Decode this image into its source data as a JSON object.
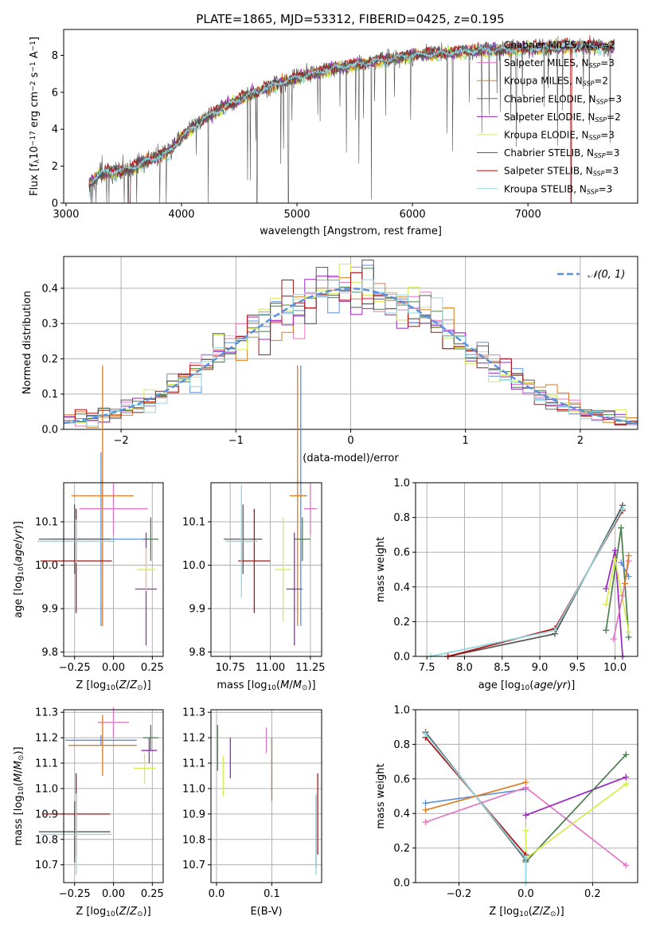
{
  "figure_title": "PLATE=1865, MJD=53312, FIBERID=0425, z=0.195",
  "colors": {
    "Chabrier MILES": "#5b8fde",
    "Salpeter MILES": "#e377c2",
    "Kroupa MILES": "#e07b20",
    "Chabrier ELODIE": "#4c7d4c",
    "Salpeter ELODIE": "#9a26c2",
    "Kroupa ELODIE": "#d4ec4f",
    "Chabrier STELIB": "#555555",
    "Salpeter STELIB": "#b01010",
    "Kroupa STELIB": "#8fd6df",
    "Normal": "#5b8fde"
  },
  "chart_data": [
    {
      "id": "spectrum",
      "type": "line",
      "xlabel": "wavelength [Angstrom, rest frame]",
      "ylabel": "Flux [f",
      "ylabel_parts": {
        "a": "Flux [f",
        "b": "λ",
        "c": "10",
        "d": "−17",
        "e": " erg cm",
        "f": "−2",
        "g": " s",
        "h": "−1",
        "i": " A",
        "j": "−1",
        "k": "]"
      },
      "xlim": [
        2980,
        7950
      ],
      "ylim": [
        0,
        9.4
      ],
      "xticks": [
        3000,
        4000,
        5000,
        6000,
        7000
      ],
      "yticks": [
        0,
        2,
        4,
        6,
        8
      ],
      "legend_position": "right",
      "series": [
        {
          "name": "Chabrier MILES",
          "sub": "SSP",
          "n": "2"
        },
        {
          "name": "Salpeter MILES",
          "sub": "SSP",
          "n": "3"
        },
        {
          "name": "Kroupa MILES",
          "sub": "SSP",
          "n": "2"
        },
        {
          "name": "Chabrier ELODIE",
          "sub": "SSP",
          "n": "3"
        },
        {
          "name": "Salpeter ELODIE",
          "sub": "SSP",
          "n": "2"
        },
        {
          "name": "Kroupa ELODIE",
          "sub": "SSP",
          "n": "3"
        },
        {
          "name": "Chabrier STELIB",
          "sub": "SSP",
          "n": "3"
        },
        {
          "name": "Salpeter STELIB",
          "sub": "SSP",
          "n": "3"
        },
        {
          "name": "Kroupa STELIB",
          "sub": "SSP",
          "n": "3"
        }
      ],
      "continuum": {
        "x": [
          3200,
          3300,
          3400,
          3500,
          3600,
          3700,
          3800,
          3900,
          4000,
          4100,
          4200,
          4400,
          4600,
          4800,
          5000,
          5200,
          5400,
          5600,
          5800,
          6000,
          6200,
          6400,
          6600,
          6800,
          7000,
          7200,
          7400,
          7600,
          7700
        ],
        "y": [
          1.1,
          1.6,
          1.7,
          1.8,
          2.0,
          2.3,
          2.5,
          2.8,
          3.6,
          4.1,
          4.6,
          5.3,
          5.9,
          6.4,
          6.8,
          7.1,
          7.4,
          7.6,
          7.8,
          8.0,
          8.1,
          8.2,
          8.3,
          8.3,
          8.4,
          8.4,
          8.5,
          8.5,
          8.5
        ]
      },
      "data_range": [
        3200,
        7750
      ]
    },
    {
      "id": "residuals",
      "type": "line",
      "xlabel": "(data-model)/error",
      "ylabel": "Normed distribution",
      "xlim": [
        -2.5,
        2.5
      ],
      "ylim": [
        0,
        0.49
      ],
      "xticks": [
        -2,
        -1,
        0,
        1,
        2
      ],
      "xticklabels": [
        "−2",
        "−1",
        "0",
        "1",
        "2"
      ],
      "yticks": [
        0,
        0.1,
        0.2,
        0.3,
        0.4
      ],
      "yticklabels": [
        "0.0",
        "0.1",
        "0.2",
        "0.3",
        "0.4"
      ],
      "grid": true,
      "legend_position": "top-right",
      "legend_label": "𝒩(0, 1)",
      "bin_width": 0.1
    },
    {
      "id": "age_vs_Z",
      "type": "scatter",
      "xlabel": "Z [log10(Z/Z⊙)]",
      "ylabel": "age  [log10(age/yr)]",
      "xlim": [
        -0.32,
        0.32
      ],
      "ylim": [
        9.79,
        10.19
      ],
      "xticks": [
        -0.25,
        0,
        0.25
      ],
      "xticklabels": [
        "−0.25",
        "0.00",
        "0.25"
      ],
      "yticks": [
        9.8,
        9.9,
        10.0,
        10.1
      ],
      "yticklabels": [
        "9.8",
        "9.9",
        "10.0",
        "10.1"
      ],
      "grid": true,
      "points": [
        {
          "series": "Chabrier MILES",
          "x": -0.08,
          "y": 10.06,
          "xerr": 0.32,
          "yerr": 0.2
        },
        {
          "series": "Salpeter MILES",
          "x": 0.0,
          "y": 10.13,
          "xerr": 0.22,
          "yerr": 0.06
        },
        {
          "series": "Kroupa MILES",
          "x": -0.07,
          "y": 10.16,
          "xerr": 0.2,
          "yerr": 0.3
        },
        {
          "series": "Chabrier ELODIE",
          "x": 0.24,
          "y": 10.06,
          "xerr": 0.05,
          "yerr": 0.05
        },
        {
          "series": "Salpeter ELODIE",
          "x": 0.21,
          "y": 9.945,
          "xerr": 0.07,
          "yerr": 0.13
        },
        {
          "series": "Kroupa ELODIE",
          "x": 0.21,
          "y": 9.99,
          "xerr": 0.06,
          "yerr": 0.05
        },
        {
          "series": "Chabrier STELIB",
          "x": -0.25,
          "y": 10.06,
          "xerr": 0.23,
          "yerr": 0.08
        },
        {
          "series": "Salpeter STELIB",
          "x": -0.24,
          "y": 10.01,
          "xerr": 0.23,
          "yerr": 0.12
        },
        {
          "series": "Kroupa STELIB",
          "x": -0.24,
          "y": 10.055,
          "xerr": 0.25,
          "yerr": 0.05
        }
      ]
    },
    {
      "id": "age_vs_mass",
      "type": "scatter",
      "xlabel": "mass [log10(M/M⊙)]",
      "xlim": [
        10.63,
        11.32
      ],
      "ylim": [
        9.79,
        10.19
      ],
      "xticks": [
        10.75,
        11.0,
        11.25
      ],
      "xticklabels": [
        "10.75",
        "11.00",
        "11.25"
      ],
      "yticks": [
        9.8,
        9.9,
        10.0,
        10.1
      ],
      "yticklabels": [
        "9.8",
        "9.9",
        "10.0",
        "10.1"
      ],
      "grid": true,
      "points": [
        {
          "series": "Chabrier MILES",
          "x": 11.19,
          "y": 10.16,
          "xerr": 0.04,
          "yerr": 0.3
        },
        {
          "series": "Salpeter MILES",
          "x": 11.25,
          "y": 10.13,
          "xerr": 0.04,
          "yerr": 0.06
        },
        {
          "series": "Kroupa MILES",
          "x": 11.17,
          "y": 10.16,
          "xerr": 0.05,
          "yerr": 0.3
        },
        {
          "series": "Chabrier ELODIE",
          "x": 11.2,
          "y": 10.06,
          "xerr": 0.05,
          "yerr": 0.05
        },
        {
          "series": "Salpeter ELODIE",
          "x": 11.15,
          "y": 9.945,
          "xerr": 0.05,
          "yerr": 0.13
        },
        {
          "series": "Kroupa ELODIE",
          "x": 11.08,
          "y": 9.99,
          "xerr": 0.05,
          "yerr": 0.12
        },
        {
          "series": "Chabrier STELIB",
          "x": 10.83,
          "y": 10.06,
          "xerr": 0.12,
          "yerr": 0.08
        },
        {
          "series": "Salpeter STELIB",
          "x": 10.9,
          "y": 10.01,
          "xerr": 0.1,
          "yerr": 0.12
        },
        {
          "series": "Kroupa STELIB",
          "x": 10.82,
          "y": 10.055,
          "xerr": 0.1,
          "yerr": 0.13
        }
      ]
    },
    {
      "id": "weight_vs_age",
      "type": "line",
      "xlabel": "age  [log10(age/yr)]",
      "ylabel": "mass weight",
      "xlim": [
        7.35,
        10.3
      ],
      "ylim": [
        0,
        1
      ],
      "xticks": [
        7.5,
        8.0,
        8.5,
        9.0,
        9.5,
        10.0
      ],
      "xticklabels": [
        "7.5",
        "8.0",
        "8.5",
        "9.0",
        "9.5",
        "10.0"
      ],
      "yticks": [
        0,
        0.2,
        0.4,
        0.6,
        0.8,
        1.0
      ],
      "yticklabels": [
        "0.0",
        "0.2",
        "0.4",
        "0.6",
        "0.8",
        "1.0"
      ],
      "grid": true,
      "series": [
        {
          "name": "Chabrier STELIB",
          "x": [
            7.78,
            9.2,
            10.1
          ],
          "y": [
            0.0,
            0.13,
            0.87
          ]
        },
        {
          "name": "Salpeter STELIB",
          "x": [
            7.78,
            9.2,
            10.1
          ],
          "y": [
            0.0,
            0.16,
            0.84
          ]
        },
        {
          "name": "Kroupa STELIB",
          "x": [
            7.55,
            9.2,
            10.1
          ],
          "y": [
            0.0,
            0.15,
            0.85
          ]
        },
        {
          "name": "Chabrier ELODIE",
          "x": [
            9.88,
            10.08,
            10.18
          ],
          "y": [
            0.15,
            0.74,
            0.11
          ]
        },
        {
          "name": "Salpeter ELODIE",
          "x": [
            9.88,
            10.0,
            10.1
          ],
          "y": [
            0.39,
            0.61,
            0.0
          ]
        },
        {
          "name": "Kroupa ELODIE",
          "x": [
            9.88,
            10.0,
            10.18
          ],
          "y": [
            0.3,
            0.56,
            0.14
          ]
        },
        {
          "name": "Chabrier MILES",
          "x": [
            10.08,
            10.18
          ],
          "y": [
            0.54,
            0.46
          ]
        },
        {
          "name": "Salpeter MILES",
          "x": [
            9.98,
            10.1,
            10.18
          ],
          "y": [
            0.1,
            0.35,
            0.55
          ]
        },
        {
          "name": "Kroupa MILES",
          "x": [
            10.13,
            10.18
          ],
          "y": [
            0.42,
            0.58
          ]
        }
      ]
    },
    {
      "id": "mass_vs_Z",
      "type": "scatter",
      "xlabel": "Z [log10(Z/Z⊙)]",
      "ylabel": "mass [log10(M/M⊙)]",
      "xlim": [
        -0.32,
        0.32
      ],
      "ylim": [
        10.63,
        11.31
      ],
      "xticks": [
        -0.25,
        0,
        0.25
      ],
      "xticklabels": [
        "−0.25",
        "0.00",
        "0.25"
      ],
      "yticks": [
        10.7,
        10.8,
        10.9,
        11.0,
        11.1,
        11.2,
        11.3
      ],
      "yticklabels": [
        "10.7",
        "10.8",
        "10.9",
        "11.0",
        "11.1",
        "11.2",
        "11.3"
      ],
      "grid": true,
      "points": [
        {
          "series": "Chabrier MILES",
          "x": -0.08,
          "y": 11.19,
          "xerr": 0.23,
          "yerr": 0.02
        },
        {
          "series": "Salpeter MILES",
          "x": 0.0,
          "y": 11.26,
          "xerr": 0.1,
          "yerr": 0.06
        },
        {
          "series": "Kroupa MILES",
          "x": -0.07,
          "y": 11.17,
          "xerr": 0.22,
          "yerr": 0.12
        },
        {
          "series": "Chabrier ELODIE",
          "x": 0.24,
          "y": 11.2,
          "xerr": 0.05,
          "yerr": 0.05
        },
        {
          "series": "Salpeter ELODIE",
          "x": 0.23,
          "y": 11.15,
          "xerr": 0.05,
          "yerr": 0.05
        },
        {
          "series": "Kroupa ELODIE",
          "x": 0.2,
          "y": 11.08,
          "xerr": 0.07,
          "yerr": 0.06
        },
        {
          "series": "Chabrier STELIB",
          "x": -0.25,
          "y": 10.83,
          "xerr": 0.23,
          "yerr": 0.12
        },
        {
          "series": "Salpeter STELIB",
          "x": -0.24,
          "y": 10.9,
          "xerr": 0.22,
          "yerr": 0.16
        },
        {
          "series": "Kroupa STELIB",
          "x": -0.24,
          "y": 10.82,
          "xerr": 0.23,
          "yerr": 0.16
        }
      ]
    },
    {
      "id": "mass_vs_ebv",
      "type": "scatter",
      "xlabel": "E(B-V)",
      "xlim": [
        -0.01,
        0.19
      ],
      "ylim": [
        10.63,
        11.31
      ],
      "xticks": [
        0.0,
        0.1
      ],
      "xticklabels": [
        "0.0",
        "0.1"
      ],
      "yticks": [
        10.7,
        10.8,
        10.9,
        11.0,
        11.1,
        11.2,
        11.3
      ],
      "yticklabels": [
        "10.7",
        "10.8",
        "10.9",
        "11.0",
        "11.1",
        "11.2",
        "11.3"
      ],
      "grid": true,
      "points": [
        {
          "series": "Chabrier MILES",
          "x": 0.1,
          "y": 11.08,
          "xerr": 0.0,
          "yerr": 0.12
        },
        {
          "series": "Salpeter MILES",
          "x": 0.09,
          "y": 11.19,
          "xerr": 0.0,
          "yerr": 0.05
        },
        {
          "series": "Kroupa MILES",
          "x": 0.1,
          "y": 11.07,
          "xerr": 0.0,
          "yerr": 0.12
        },
        {
          "series": "Chabrier ELODIE",
          "x": 0.002,
          "y": 11.16,
          "xerr": 0.0,
          "yerr": 0.09
        },
        {
          "series": "Salpeter ELODIE",
          "x": 0.025,
          "y": 11.12,
          "xerr": 0.0,
          "yerr": 0.08
        },
        {
          "series": "Kroupa ELODIE",
          "x": 0.012,
          "y": 11.05,
          "xerr": 0.0,
          "yerr": 0.08
        },
        {
          "series": "Chabrier STELIB",
          "x": 0.18,
          "y": 10.83,
          "xerr": 0.0,
          "yerr": 0.14
        },
        {
          "series": "Salpeter STELIB",
          "x": 0.183,
          "y": 10.9,
          "xerr": 0.0,
          "yerr": 0.16
        },
        {
          "series": "Kroupa STELIB",
          "x": 0.18,
          "y": 10.82,
          "xerr": 0.0,
          "yerr": 0.16
        }
      ]
    },
    {
      "id": "weight_vs_Z",
      "type": "line",
      "xlabel": "Z [log10(Z/Z⊙)]",
      "ylabel": "mass weight",
      "xlim": [
        -0.33,
        0.335
      ],
      "ylim": [
        0,
        1
      ],
      "xticks": [
        -0.2,
        0.0,
        0.2
      ],
      "xticklabels": [
        "−0.2",
        "0.0",
        "0.2"
      ],
      "yticks": [
        0,
        0.2,
        0.4,
        0.6,
        0.8,
        1.0
      ],
      "yticklabels": [
        "0.0",
        "0.2",
        "0.4",
        "0.6",
        "0.8",
        "1.0"
      ],
      "grid": true,
      "series": [
        {
          "name": "Chabrier MILES",
          "x": [
            -0.3,
            0.0
          ],
          "y": [
            0.46,
            0.54
          ]
        },
        {
          "name": "Kroupa MILES",
          "x": [
            -0.3,
            0.0
          ],
          "y": [
            0.42,
            0.58
          ]
        },
        {
          "name": "Salpeter MILES",
          "x": [
            -0.3,
            0.0,
            0.3
          ],
          "y": [
            0.35,
            0.55,
            0.1
          ]
        },
        {
          "name": "Salpeter ELODIE",
          "x": [
            0.0,
            0.3
          ],
          "y": [
            0.39,
            0.61
          ]
        },
        {
          "name": "Chabrier ELODIE",
          "x": [
            0.0,
            0.3
          ],
          "y": [
            0.12,
            0.74
          ]
        },
        {
          "name": "Kroupa ELODIE",
          "x": [
            0.0,
            0.0,
            0.3
          ],
          "y": [
            0.3,
            0.14,
            0.57
          ]
        },
        {
          "name": "Salpeter STELIB",
          "x": [
            -0.3,
            0.0
          ],
          "y": [
            0.84,
            0.16
          ]
        },
        {
          "name": "Chabrier STELIB",
          "x": [
            -0.3,
            0.0
          ],
          "y": [
            0.87,
            0.13
          ]
        },
        {
          "name": "Kroupa STELIB",
          "x": [
            -0.3,
            0.0,
            0.0
          ],
          "y": [
            0.86,
            0.14,
            0.0
          ]
        }
      ]
    }
  ]
}
